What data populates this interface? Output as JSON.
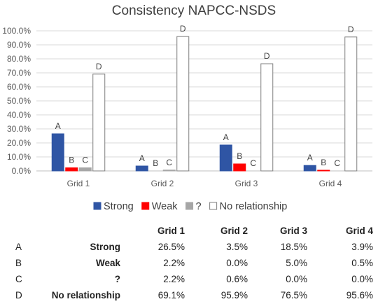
{
  "chart_data": {
    "type": "bar",
    "title": "Consistency NAPCC-NSDS",
    "categories": [
      "Grid 1",
      "Grid 2",
      "Grid 3",
      "Grid 4"
    ],
    "yticks": [
      "0.0%",
      "10.0%",
      "20.0%",
      "30.0%",
      "40.0%",
      "50.0%",
      "60.0%",
      "70.0%",
      "80.0%",
      "90.0%",
      "100.0%"
    ],
    "ylim": [
      0,
      100
    ],
    "grid": true,
    "legend_position": "bottom",
    "series": [
      {
        "name": "Strong",
        "letter": "A",
        "color": "#2f55a4",
        "outline": "#2f55a4",
        "values": [
          26.5,
          3.5,
          18.5,
          3.9
        ]
      },
      {
        "name": "Weak",
        "letter": "B",
        "color": "#ff0000",
        "outline": "#ff0000",
        "values": [
          2.2,
          0.0,
          5.0,
          0.5
        ]
      },
      {
        "name": "?",
        "letter": "C",
        "color": "#a6a6a6",
        "outline": "#a6a6a6",
        "values": [
          2.2,
          0.6,
          0.0,
          0.0
        ]
      },
      {
        "name": "No relationship",
        "letter": "D",
        "color": "#ffffff",
        "outline": "#7f7f7f",
        "values": [
          69.1,
          95.9,
          76.5,
          95.6
        ]
      }
    ]
  },
  "table": {
    "headers": [
      "Grid 1",
      "Grid 2",
      "Grid 3",
      "Grid 4"
    ],
    "rows": [
      {
        "letter": "A",
        "label": "Strong",
        "values": [
          "26.5%",
          "3.5%",
          "18.5%",
          "3.9%"
        ]
      },
      {
        "letter": "B",
        "label": "Weak",
        "values": [
          "2.2%",
          "0.0%",
          "5.0%",
          "0.5%"
        ]
      },
      {
        "letter": "C",
        "label": "?",
        "values": [
          "2.2%",
          "0.6%",
          "0.0%",
          "0.0%"
        ]
      },
      {
        "letter": "D",
        "label": "No relationship",
        "values": [
          "69.1%",
          "95.9%",
          "76.5%",
          "95.6%"
        ]
      }
    ]
  }
}
